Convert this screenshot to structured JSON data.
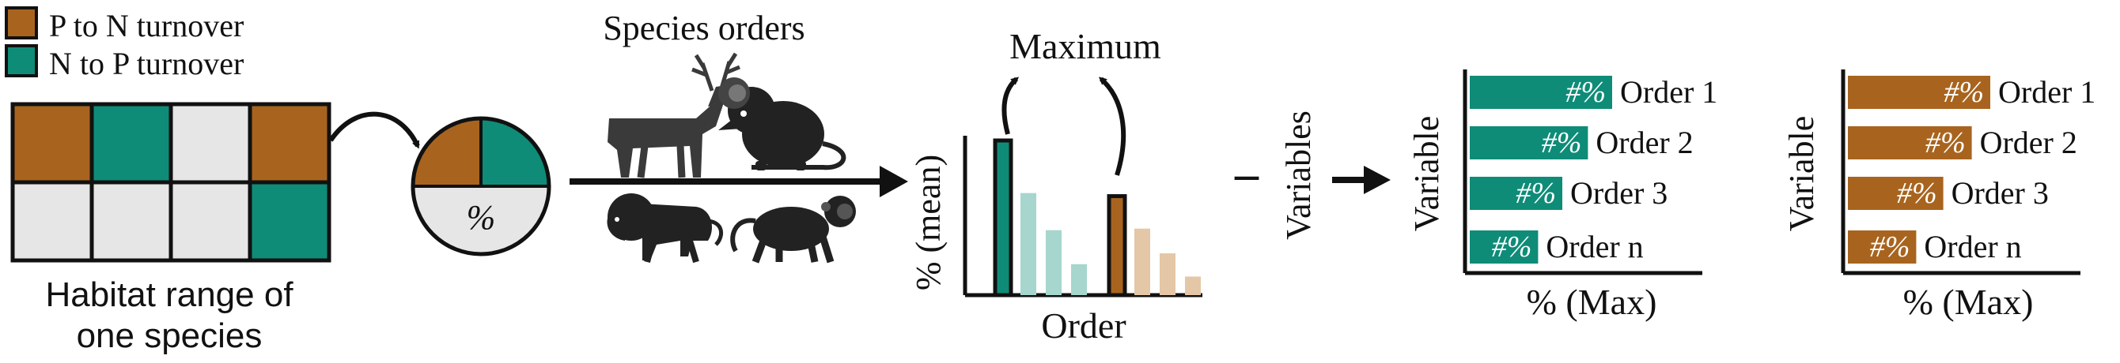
{
  "colors": {
    "brown": "#A8641E",
    "teal": "#0E8C78",
    "grey": "#E6E6E6",
    "teal_light": "#A6D6CD",
    "brown_light": "#E4C7A6",
    "ink": "#111111"
  },
  "legend": {
    "p_to_n": "P to N turnover",
    "n_to_p": "N to P turnover"
  },
  "habitat": {
    "caption_line1": "Habitat range of",
    "caption_line2": "one species",
    "grid": [
      [
        "brown",
        "teal",
        "grey",
        "brown"
      ],
      [
        "grey",
        "grey",
        "grey",
        "teal"
      ]
    ]
  },
  "pie": {
    "label": "%"
  },
  "species": {
    "title": "Species orders",
    "icons": [
      "deer-icon",
      "mouse-icon",
      "lion-icon",
      "monkey-icon"
    ]
  },
  "mean_chart": {
    "top_label": "Maximum",
    "ylabel": "% (mean)",
    "xlabel": "Order"
  },
  "variables_step": {
    "dash": "–",
    "label": "Variables"
  },
  "chart_data": [
    {
      "type": "bar",
      "ylabel": "% (mean)",
      "xlabel": "Order",
      "groups": [
        {
          "color": "teal",
          "values": [
            100,
            66,
            42,
            20
          ]
        },
        {
          "color": "brown",
          "values": [
            64,
            43,
            27,
            12
          ]
        }
      ]
    },
    {
      "type": "bar",
      "orientation": "horizontal",
      "color": "teal",
      "ylabel": "Variable",
      "xlabel": "% (Max)",
      "categories": [
        "Order 1",
        "Order 2",
        "Order 3",
        "Order n"
      ],
      "values": [
        100,
        83,
        65,
        48
      ],
      "bar_labels": [
        "#%",
        "#%",
        "#%",
        "#%"
      ]
    },
    {
      "type": "bar",
      "orientation": "horizontal",
      "color": "brown",
      "ylabel": "Variable",
      "xlabel": "% (Max)",
      "categories": [
        "Order 1",
        "Order 2",
        "Order 3",
        "Order n"
      ],
      "values": [
        100,
        87,
        67,
        48
      ],
      "bar_labels": [
        "#%",
        "#%",
        "#%",
        "#%"
      ]
    }
  ]
}
